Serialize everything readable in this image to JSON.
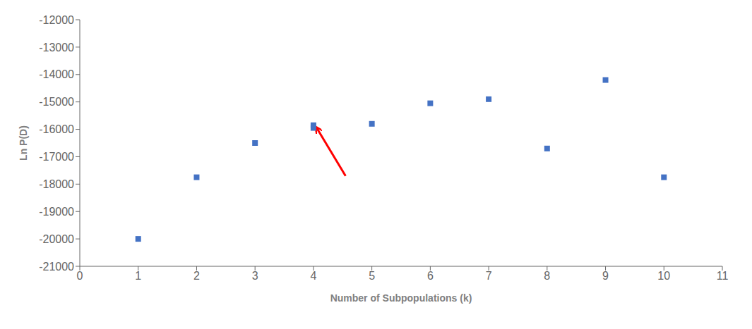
{
  "chart_data": {
    "type": "scatter",
    "x": [
      1,
      2,
      3,
      4,
      4,
      5,
      6,
      7,
      8,
      9,
      10
    ],
    "values": [
      -20000,
      -17750,
      -16500,
      -15850,
      -15950,
      -15800,
      -15050,
      -14900,
      -16700,
      -14200,
      -17750
    ],
    "color": "#4472C4",
    "marker": "square",
    "xlabel": "Number of Subpopulations  (k)",
    "ylabel": "Ln P(D)",
    "xlim": [
      0,
      11
    ],
    "ylim": [
      -21000,
      -12000
    ],
    "xticks": [
      0,
      1,
      2,
      3,
      4,
      5,
      6,
      7,
      8,
      9,
      10,
      11
    ],
    "yticks": [
      -21000,
      -20000,
      -19000,
      -18000,
      -17000,
      -16000,
      -15000,
      -14000,
      -13000,
      -12000
    ],
    "grid": false,
    "annotations": [
      {
        "type": "arrow",
        "from": [
          4.55,
          -17700
        ],
        "to": [
          4.05,
          -15930
        ],
        "color": "red"
      }
    ]
  }
}
